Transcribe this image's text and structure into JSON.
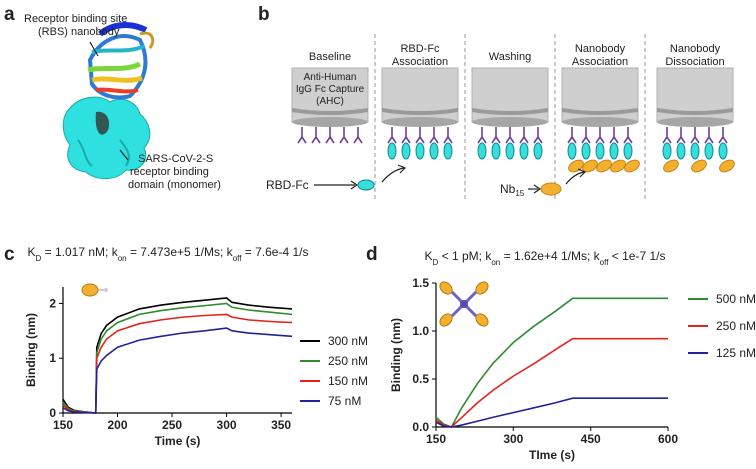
{
  "panel_labels": [
    "a",
    "b",
    "c",
    "d"
  ],
  "panel_a": {
    "nanobody_label": [
      "Receptor binding site",
      "(RBS) nanobody"
    ],
    "domain_label": [
      "SARS-CoV-2-S",
      "receptor binding",
      "domain (monomer)"
    ]
  },
  "panel_b": {
    "stages": [
      [
        "Baseline"
      ],
      [
        "RBD-Fc",
        "Association"
      ],
      [
        "Washing"
      ],
      [
        "Nanobody",
        "Association"
      ],
      [
        "Nanobody",
        "Dissociation"
      ]
    ],
    "sensor_label": [
      "Anti-Human",
      "IgG Fc Capture",
      "(AHC)"
    ],
    "rbd_label": "RBD-Fc",
    "nb_label": [
      "Nb",
      "15"
    ]
  },
  "chart_data": [
    {
      "type": "line",
      "title": [
        "K",
        "D",
        " = 1.017 nM; k",
        "on",
        " = 7.473e+5 1/Ms; k",
        "off",
        " = 7.6e-4 1/s"
      ],
      "x_label": "Time (s)",
      "y_label": "Binding (nm)",
      "x": [
        150,
        155,
        160,
        170,
        180,
        181,
        185,
        190,
        200,
        220,
        240,
        260,
        280,
        300,
        305,
        320,
        340,
        360
      ],
      "xlim": [
        150,
        360
      ],
      "xticks": [
        150,
        200,
        250,
        300,
        350
      ],
      "ylim": [
        0,
        2.3
      ],
      "yticks": [
        0,
        1,
        2
      ],
      "series": [
        {
          "name": "300 nM",
          "color": "#000000",
          "values": [
            0.25,
            0.1,
            0.05,
            0.02,
            0,
            1.2,
            1.45,
            1.6,
            1.75,
            1.9,
            1.97,
            2.02,
            2.06,
            2.1,
            2.02,
            1.97,
            1.93,
            1.9
          ]
        },
        {
          "name": "250 nM",
          "color": "#2e8b2e",
          "values": [
            0.2,
            0.08,
            0.04,
            0.02,
            0,
            1.1,
            1.35,
            1.5,
            1.65,
            1.8,
            1.87,
            1.92,
            1.96,
            2.0,
            1.93,
            1.88,
            1.84,
            1.8
          ]
        },
        {
          "name": "150 nM",
          "color": "#e3241b",
          "values": [
            0.15,
            0.06,
            0.03,
            0.01,
            0,
            1.0,
            1.2,
            1.35,
            1.5,
            1.63,
            1.7,
            1.75,
            1.78,
            1.8,
            1.75,
            1.7,
            1.67,
            1.65
          ]
        },
        {
          "name": "75 nM",
          "color": "#22229a",
          "values": [
            0.1,
            0.04,
            0.02,
            0.01,
            0,
            0.8,
            0.95,
            1.05,
            1.2,
            1.33,
            1.4,
            1.46,
            1.5,
            1.55,
            1.5,
            1.46,
            1.43,
            1.4
          ]
        }
      ]
    },
    {
      "type": "line",
      "title": [
        "K",
        "D",
        " < 1 pM; k",
        "on",
        " = 1.62e+4 1/Ms; k",
        "off",
        " < 1e-7 1/s"
      ],
      "x_label": "TIme (s)",
      "y_label": "Binding (nm)",
      "x": [
        150,
        165,
        180,
        200,
        230,
        260,
        300,
        340,
        380,
        415,
        450,
        500,
        550,
        600
      ],
      "xlim": [
        150,
        600
      ],
      "xticks": [
        150,
        300,
        450,
        600
      ],
      "ylim": [
        0,
        1.5
      ],
      "yticks": [
        {
          "value": 0,
          "label": "0.0"
        },
        {
          "value": 0.5,
          "label": "0.5"
        },
        {
          "value": 1,
          "label": "1.0"
        },
        {
          "value": 1.5,
          "label": "1.5"
        }
      ],
      "series": [
        {
          "name": "500 nM",
          "color": "#2e8b2e",
          "values": [
            0.1,
            0.03,
            0,
            0.2,
            0.45,
            0.66,
            0.88,
            1.05,
            1.2,
            1.34,
            1.34,
            1.34,
            1.34,
            1.34
          ]
        },
        {
          "name": "250 nM",
          "color": "#e3241b",
          "values": [
            0.07,
            0.02,
            0,
            0.1,
            0.25,
            0.38,
            0.53,
            0.66,
            0.8,
            0.92,
            0.92,
            0.92,
            0.92,
            0.92
          ]
        },
        {
          "name": "125 nM",
          "color": "#22229a",
          "values": [
            0.05,
            0.01,
            0,
            0.02,
            0.06,
            0.1,
            0.15,
            0.2,
            0.25,
            0.3,
            0.3,
            0.3,
            0.3,
            0.3
          ]
        }
      ]
    }
  ]
}
